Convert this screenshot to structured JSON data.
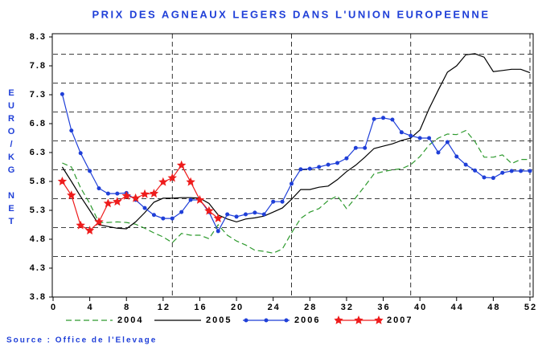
{
  "chart_data": {
    "type": "line",
    "title": "PRIX DES AGNEAUX LEGERS DANS L'UNION EUROPEENNE",
    "y_label": "EURO/KG NET",
    "source": "Source : Office de l'Elevage",
    "x": [
      1,
      2,
      3,
      4,
      5,
      6,
      7,
      8,
      9,
      10,
      11,
      12,
      13,
      14,
      15,
      16,
      17,
      18,
      19,
      20,
      21,
      22,
      23,
      24,
      25,
      26,
      27,
      28,
      29,
      30,
      31,
      32,
      33,
      34,
      35,
      36,
      37,
      38,
      39,
      40,
      41,
      42,
      43,
      44,
      45,
      46,
      47,
      48,
      49,
      50,
      51,
      52
    ],
    "xlim": [
      0,
      52
    ],
    "xticks": [
      0,
      4,
      8,
      12,
      16,
      20,
      24,
      28,
      32,
      36,
      40,
      44,
      48,
      52
    ],
    "ylim": [
      3.8,
      8.3
    ],
    "yticks": [
      3.8,
      4.3,
      4.8,
      5.3,
      5.8,
      6.3,
      6.8,
      7.3,
      7.8,
      8.3
    ],
    "xgrid": [
      13,
      26,
      39,
      52
    ],
    "ygrid": [
      4.5,
      5.0,
      5.5,
      6.0,
      6.5,
      7.0,
      7.5,
      8.0
    ],
    "series": [
      {
        "name": "2004",
        "color": "#2e9a2e",
        "dash": true,
        "marker": "none",
        "values": [
          6.12,
          6.05,
          5.69,
          5.42,
          5.09,
          5.09,
          5.1,
          5.09,
          5.06,
          4.99,
          4.91,
          4.84,
          4.74,
          4.9,
          4.87,
          4.87,
          4.81,
          5.05,
          4.87,
          4.77,
          4.7,
          4.61,
          4.59,
          4.56,
          4.63,
          4.91,
          5.16,
          5.27,
          5.33,
          5.47,
          5.55,
          5.33,
          5.52,
          5.72,
          5.93,
          5.97,
          6.0,
          6.02,
          6.09,
          6.23,
          6.43,
          6.55,
          6.62,
          6.61,
          6.68,
          6.49,
          6.22,
          6.22,
          6.26,
          6.11,
          6.18,
          6.18
        ]
      },
      {
        "name": "2005",
        "color": "#000000",
        "dash": false,
        "marker": "none",
        "values": [
          6.05,
          5.8,
          5.54,
          5.3,
          5.05,
          5.02,
          4.99,
          4.98,
          5.1,
          5.26,
          5.44,
          5.51,
          5.51,
          5.52,
          5.52,
          5.51,
          5.42,
          5.22,
          5.15,
          5.1,
          5.15,
          5.17,
          5.2,
          5.27,
          5.34,
          5.49,
          5.66,
          5.66,
          5.7,
          5.72,
          5.83,
          5.97,
          6.08,
          6.22,
          6.37,
          6.41,
          6.45,
          6.51,
          6.55,
          6.69,
          7.06,
          7.38,
          7.69,
          7.8,
          7.99,
          8.01,
          7.95,
          7.7,
          7.72,
          7.74,
          7.74,
          7.68
        ]
      },
      {
        "name": "2006",
        "color": "#1f3fd8",
        "dash": false,
        "marker": "dot",
        "values": [
          7.31,
          6.68,
          6.29,
          5.98,
          5.68,
          5.59,
          5.59,
          5.6,
          5.48,
          5.34,
          5.22,
          5.16,
          5.16,
          5.27,
          5.48,
          5.48,
          5.27,
          4.94,
          5.23,
          5.19,
          5.23,
          5.26,
          5.23,
          5.45,
          5.45,
          5.76,
          6.01,
          6.02,
          6.05,
          6.09,
          6.12,
          6.2,
          6.38,
          6.38,
          6.88,
          6.9,
          6.87,
          6.65,
          6.59,
          6.55,
          6.55,
          6.3,
          6.48,
          6.23,
          6.09,
          5.99,
          5.87,
          5.86,
          5.95,
          5.98,
          5.98,
          5.98
        ]
      },
      {
        "name": "2007",
        "color": "#ee1c1c",
        "dash": false,
        "marker": "star",
        "values": [
          5.8,
          5.56,
          5.04,
          4.95,
          5.1,
          5.42,
          5.45,
          5.55,
          5.51,
          5.58,
          5.59,
          5.79,
          5.86,
          6.08,
          5.79,
          5.48,
          5.29,
          5.16,
          null,
          null,
          null,
          null,
          null,
          null,
          null,
          null,
          null,
          null,
          null,
          null,
          null,
          null,
          null,
          null,
          null,
          null,
          null,
          null,
          null,
          null,
          null,
          null,
          null,
          null,
          null,
          null,
          null,
          null,
          null,
          null,
          null,
          null
        ]
      }
    ]
  }
}
